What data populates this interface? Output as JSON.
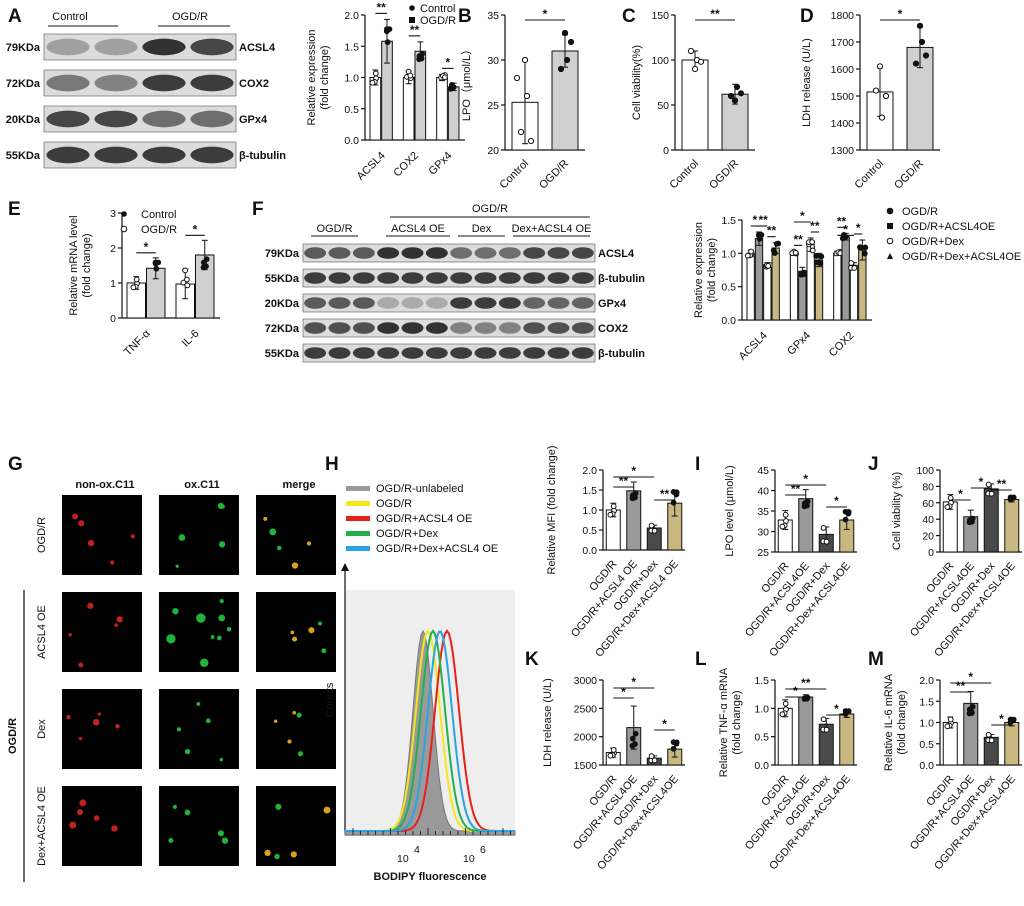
{
  "panels": {
    "A": {
      "label": "A",
      "blot": {
        "groups": [
          "Control",
          "OGD/R"
        ],
        "rows": [
          {
            "kda": "79KDa",
            "protein": "ACSL4",
            "lanes": [
              0.35,
              0.35,
              0.9,
              0.8
            ]
          },
          {
            "kda": "72KDa",
            "protein": "COX2",
            "lanes": [
              0.55,
              0.5,
              0.85,
              0.85
            ]
          },
          {
            "kda": "20KDa",
            "protein": "GPx4",
            "lanes": [
              0.8,
              0.8,
              0.6,
              0.6
            ]
          },
          {
            "kda": "55KDa",
            "protein": "β-tubulin",
            "lanes": [
              0.85,
              0.85,
              0.85,
              0.85
            ]
          }
        ]
      },
      "chart_data": {
        "type": "bar",
        "ylabel": "Relative expression\n(fold change)",
        "ylim": [
          0,
          2.0
        ],
        "yticks": [
          "0.0",
          "0.5",
          "1.0",
          "1.5",
          "2.0"
        ],
        "categories": [
          "ACSL4",
          "COX2",
          "GPx4"
        ],
        "legend": [
          "Control",
          "OGD/R"
        ],
        "series": [
          {
            "name": "Control",
            "values": [
              1.0,
              1.0,
              1.0
            ],
            "errors": [
              0.12,
              0.1,
              0.05
            ],
            "color": "#ffffff"
          },
          {
            "name": "OGD/R",
            "values": [
              1.58,
              1.42,
              0.85
            ],
            "errors": [
              0.35,
              0.15,
              0.06
            ],
            "color": "#cfcfcf"
          }
        ],
        "significance": [
          "**",
          "**",
          "*"
        ]
      }
    },
    "B": {
      "label": "B",
      "chart_data": {
        "type": "bar",
        "ylabel": "LPO（μmol/L）",
        "ylim": [
          20,
          35
        ],
        "yticks": [
          "20",
          "25",
          "30",
          "35"
        ],
        "categories": [
          "Control",
          "OGD/R"
        ],
        "values": [
          25.3,
          31.0
        ],
        "errors": [
          4.6,
          1.8
        ],
        "points": [
          [
            30,
            26,
            22,
            21,
            28
          ],
          [
            33,
            30,
            29,
            32
          ]
        ],
        "significance": "*"
      }
    },
    "C": {
      "label": "C",
      "chart_data": {
        "type": "bar",
        "ylabel": "Cell viability(%)",
        "ylim": [
          0,
          150
        ],
        "yticks": [
          "0",
          "50",
          "100",
          "150"
        ],
        "categories": [
          "Control",
          "OGD/R"
        ],
        "values": [
          100,
          62
        ],
        "errors": [
          10,
          11
        ],
        "points": [
          [
            90,
            100,
            110,
            98
          ],
          [
            55,
            70,
            60,
            63
          ]
        ],
        "significance": "**"
      }
    },
    "D": {
      "label": "D",
      "chart_data": {
        "type": "bar",
        "ylabel": "LDH release (U/L)",
        "ylim": [
          1300,
          1800
        ],
        "yticks": [
          "1300",
          "1400",
          "1500",
          "1600",
          "1700",
          "1800"
        ],
        "categories": [
          "Control",
          "OGD/R"
        ],
        "values": [
          1515,
          1680
        ],
        "errors": [
          90,
          75
        ],
        "points": [
          [
            1610,
            1420,
            1520,
            1500
          ],
          [
            1760,
            1700,
            1620,
            1650
          ]
        ],
        "significance": "*"
      }
    },
    "E": {
      "label": "E",
      "chart_data": {
        "type": "bar",
        "ylabel": "Relative mRNA level\n(fold change)",
        "ylim": [
          0,
          3
        ],
        "yticks": [
          "0",
          "1",
          "2",
          "3"
        ],
        "categories": [
          "TNF-α",
          "IL-6"
        ],
        "legend": [
          "Control",
          "OGD/R"
        ],
        "series": [
          {
            "name": "Control",
            "values": [
              1.0,
              0.97
            ],
            "errors": [
              0.18,
              0.42
            ]
          },
          {
            "name": "OGD/R",
            "values": [
              1.42,
              1.8
            ],
            "errors": [
              0.3,
              0.42
            ]
          }
        ],
        "significance": [
          "*",
          "*"
        ]
      }
    },
    "F": {
      "label": "F",
      "blot": {
        "top_group": "OGD/R",
        "groups": [
          "OGD/R",
          "ACSL4 OE",
          "Dex",
          "Dex+ACSL4 OE"
        ],
        "rows": [
          {
            "kda": "79KDa",
            "protein": "ACSL4",
            "lanes": [
              0.7,
              0.7,
              0.7,
              0.9,
              0.9,
              0.9,
              0.6,
              0.6,
              0.6,
              0.8,
              0.8,
              0.8
            ]
          },
          {
            "kda": "55KDa",
            "protein": "β-tubulin",
            "lanes": [
              0.85,
              0.85,
              0.85,
              0.85,
              0.85,
              0.85,
              0.85,
              0.85,
              0.85,
              0.85,
              0.85,
              0.85
            ]
          },
          {
            "kda": "20KDa",
            "protein": "GPx4",
            "lanes": [
              0.7,
              0.7,
              0.7,
              0.3,
              0.3,
              0.3,
              0.85,
              0.85,
              0.85,
              0.65,
              0.65,
              0.65
            ]
          },
          {
            "kda": "72KDa",
            "protein": "COX2",
            "lanes": [
              0.75,
              0.75,
              0.75,
              0.9,
              0.9,
              0.9,
              0.5,
              0.5,
              0.5,
              0.75,
              0.75,
              0.75
            ]
          },
          {
            "kda": "55KDa",
            "protein": "β-tubulin",
            "lanes": [
              0.85,
              0.85,
              0.85,
              0.85,
              0.85,
              0.85,
              0.85,
              0.85,
              0.85,
              0.85,
              0.85,
              0.85
            ]
          }
        ]
      },
      "chart_data": {
        "type": "bar",
        "ylabel": "Relative expression\n(fold change)",
        "ylim": [
          0,
          1.5
        ],
        "yticks": [
          "0.0",
          "0.5",
          "1.0",
          "1.5"
        ],
        "categories": [
          "ACSL4",
          "GPx4",
          "COX2"
        ],
        "legend": [
          "OGD/R",
          "OGD/R+ACSL4OE",
          "OGD/R+Dex",
          "OGD/R+Dex+ACSL4OE"
        ],
        "series": [
          {
            "name": "OGD/R",
            "values": [
              1.0,
              1.0,
              1.0
            ],
            "errors": [
              0.05,
              0.03,
              0.03
            ],
            "color": "#ffffff"
          },
          {
            "name": "OGD/R+ACSL4OE",
            "values": [
              1.22,
              0.73,
              1.25
            ],
            "errors": [
              0.1,
              0.06,
              0.05
            ],
            "color": "#9a9a9a"
          },
          {
            "name": "OGD/R+Dex",
            "values": [
              0.83,
              1.13,
              0.82
            ],
            "errors": [
              0.03,
              0.1,
              0.04
            ],
            "color": "#ffffff"
          },
          {
            "name": "OGD/R+Dex+ACSL4OE",
            "values": [
              1.08,
              0.9,
              1.05
            ],
            "errors": [
              0.08,
              0.1,
              0.15
            ],
            "color": "#c9b981"
          }
        ],
        "significance": [
          "*",
          "**",
          "**",
          "**",
          "*",
          "**",
          "**",
          "*",
          "*"
        ]
      }
    },
    "G": {
      "label": "G",
      "columns": [
        "non-ox.C11",
        "ox.C11",
        "merge"
      ],
      "column_colors": [
        "#e8251f",
        "#12a83a",
        "#f29a12"
      ],
      "rows": [
        "OGD/R",
        "ACSL4 OE",
        "Dex",
        "Dex+ACSL4  OE"
      ],
      "group_label": "OGD/R"
    },
    "H": {
      "label": "H",
      "legend": [
        {
          "name": "OGD/R-unlabeled",
          "color": "#9a9a9a"
        },
        {
          "name": "OGD/R",
          "color": "#f5e61e"
        },
        {
          "name": "OGD/R+ACSL4 OE",
          "color": "#e8201c"
        },
        {
          "name": "OGD/R+Dex",
          "color": "#22b04b"
        },
        {
          "name": "OGD/R+Dex+ACSL4 OE",
          "color": "#2ba3e0"
        }
      ],
      "chart_data": {
        "type": "area",
        "xlabel": "BODIPY fluorescence",
        "ylabel": "Counts",
        "xtick_labels": [
          "10",
          "4",
          "10",
          "6"
        ]
      }
    },
    "bars": {
      "groups": [
        "OGD/R",
        "OGD/R+ACSL4 OE",
        "OGD/R+Dex",
        "OGD/R+Dex+ACSL4 OE"
      ],
      "colors": [
        "#ffffff",
        "#9a9a9a",
        "#4a4a4a",
        "#c9b981"
      ]
    },
    "MFI": {
      "chart_data": {
        "type": "bar",
        "ylabel": "Relative MFI (fold change)",
        "ylim": [
          0,
          2.0
        ],
        "yticks": [
          "0.0",
          "0.5",
          "1.0",
          "1.5",
          "2.0"
        ],
        "categories": [
          "OGD/R",
          "OGD/R+ACSL4 OE",
          "OGD/R+Dex",
          "OGD/R+Dex+ACSL4 OE"
        ],
        "values": [
          1.0,
          1.48,
          0.55,
          1.17
        ],
        "errors": [
          0.17,
          0.22,
          0.07,
          0.32
        ],
        "significance": [
          "**",
          "*",
          "**"
        ]
      }
    },
    "I": {
      "label": "I",
      "chart_data": {
        "type": "bar",
        "ylabel": "LPO level (μmol/L)",
        "ylim": [
          25,
          45
        ],
        "yticks": [
          "25",
          "30",
          "35",
          "40",
          "45"
        ],
        "categories": [
          "OGD/R",
          "OGD/R+ACSL4OE",
          "OGD/R+Dex",
          "OGD/R+Dex+ACSL4OE"
        ],
        "values": [
          32.8,
          38.0,
          29.3,
          32.8
        ],
        "errors": [
          2.3,
          2.2,
          1.8,
          2.3
        ],
        "significance": [
          "**",
          "*",
          "*"
        ]
      }
    },
    "J": {
      "label": "J",
      "chart_data": {
        "type": "bar",
        "ylabel": "Cell viability (%)",
        "ylim": [
          0,
          100
        ],
        "yticks": [
          "0",
          "20",
          "40",
          "60",
          "80",
          "100"
        ],
        "categories": [
          "OGD/R",
          "OGD/R+ACSL4OE",
          "OGD/R+Dex",
          "OGD/R+Dex+ACSL4OE"
        ],
        "values": [
          61,
          43,
          77,
          64
        ],
        "errors": [
          9,
          8,
          6,
          3
        ],
        "significance": [
          "*",
          "*",
          "**"
        ]
      }
    },
    "K": {
      "label": "K",
      "chart_data": {
        "type": "bar",
        "ylabel": "LDH release (U/L)",
        "ylim": [
          1500,
          3000
        ],
        "yticks": [
          "1500",
          "2000",
          "2500",
          "3000"
        ],
        "categories": [
          "OGD/R",
          "OGD/R+ACSL4OE",
          "OGD/R+Dex",
          "OGD/R+Dex+ACSL4OE"
        ],
        "values": [
          1720,
          2160,
          1620,
          1780
        ],
        "errors": [
          80,
          380,
          40,
          140
        ],
        "significance": [
          "*",
          "*",
          "*"
        ]
      }
    },
    "L": {
      "label": "L",
      "chart_data": {
        "type": "bar",
        "ylabel": "Relative TNF-α mRNA\n(fold change)",
        "ylim": [
          0,
          1.5
        ],
        "yticks": [
          "0.0",
          "0.5",
          "1.0",
          "1.5"
        ],
        "categories": [
          "OGD/R",
          "OGD/R+ACSL4OE",
          "OGD/R+Dex",
          "OGD/R+Dex+ACSL4OE"
        ],
        "values": [
          1.0,
          1.2,
          0.72,
          0.9
        ],
        "errors": [
          0.15,
          0.04,
          0.1,
          0.06
        ],
        "significance": [
          "*",
          "**",
          "*"
        ]
      }
    },
    "M": {
      "label": "M",
      "chart_data": {
        "type": "bar",
        "ylabel": "Relative IL-6 mRNA\n(fold change)",
        "ylim": [
          0,
          2.0
        ],
        "yticks": [
          "0.0",
          "0.5",
          "1.0",
          "1.5",
          "2.0"
        ],
        "categories": [
          "OGD/R",
          "OGD/R+ACSL4OE",
          "OGD/R+Dex",
          "OGD/R+Dex+ACSL4OE"
        ],
        "values": [
          1.0,
          1.45,
          0.65,
          1.0
        ],
        "errors": [
          0.13,
          0.28,
          0.07,
          0.08
        ],
        "significance": [
          "**",
          "*",
          "*"
        ]
      }
    }
  }
}
